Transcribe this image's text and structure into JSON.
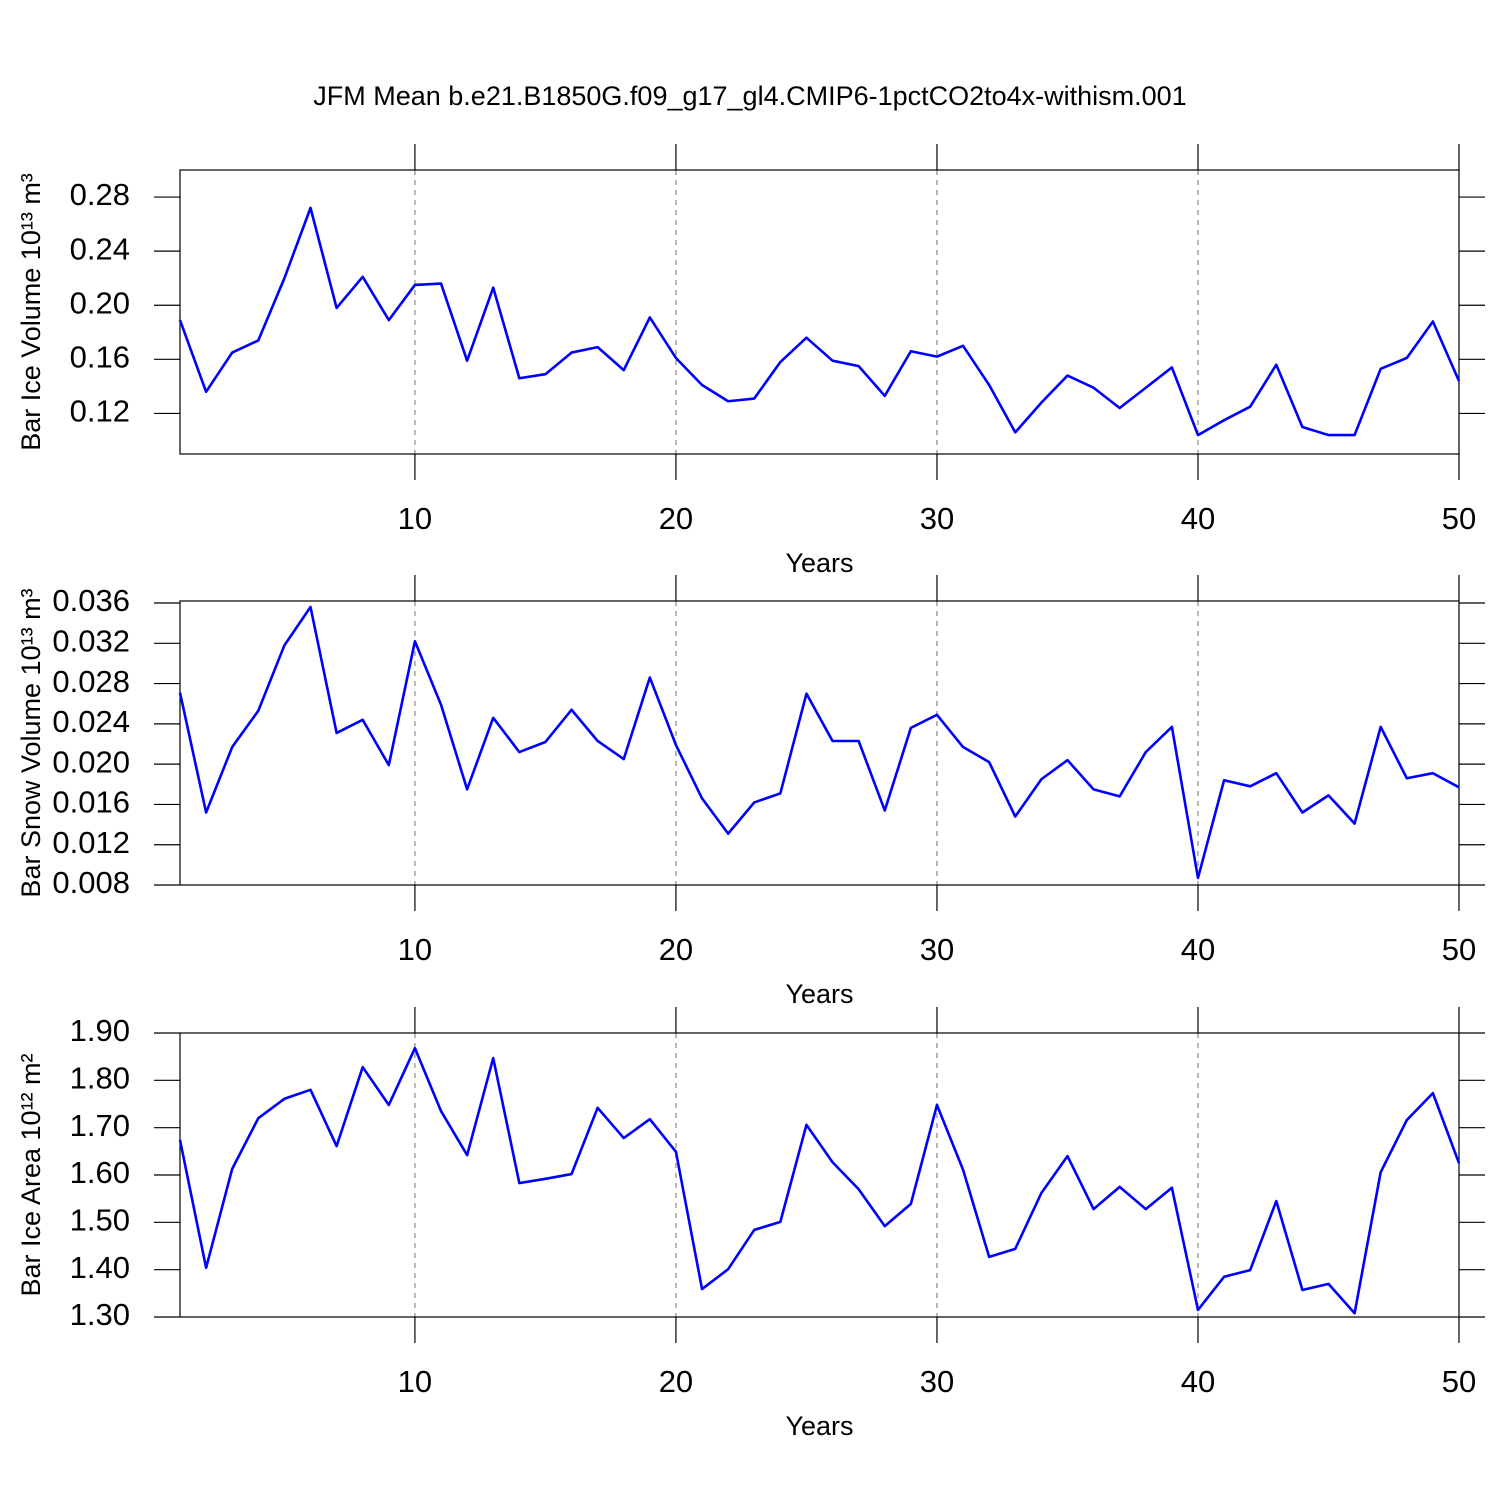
{
  "title": "JFM Mean b.e21.B1850G.f09_g17_gl4.CMIP6-1pctCO2to4x-withism.001",
  "chart_data": [
    {
      "type": "line",
      "ylabel": "Bar Ice Volume 10¹³ m³",
      "xlabel": "Years",
      "color": "#0000ff",
      "grid": "x",
      "x": [
        1,
        2,
        3,
        4,
        5,
        6,
        7,
        8,
        9,
        10,
        11,
        12,
        13,
        14,
        15,
        16,
        17,
        18,
        19,
        20,
        21,
        22,
        23,
        24,
        25,
        26,
        27,
        28,
        29,
        30,
        31,
        32,
        33,
        34,
        35,
        36,
        37,
        38,
        39,
        40,
        41,
        42,
        43,
        44,
        45,
        46,
        47,
        48,
        49,
        50
      ],
      "values": [
        0.189,
        0.136,
        0.165,
        0.174,
        0.22,
        0.272,
        0.198,
        0.221,
        0.189,
        0.215,
        0.216,
        0.159,
        0.213,
        0.146,
        0.149,
        0.165,
        0.169,
        0.152,
        0.191,
        0.161,
        0.141,
        0.129,
        0.131,
        0.158,
        0.176,
        0.159,
        0.155,
        0.133,
        0.166,
        0.162,
        0.17,
        0.141,
        0.106,
        0.128,
        0.148,
        0.139,
        0.124,
        0.139,
        0.154,
        0.104,
        0.115,
        0.125,
        0.156,
        0.11,
        0.104,
        0.104,
        0.153,
        0.161,
        0.188,
        0.144
      ],
      "xlim": [
        1,
        50
      ],
      "xticks": [
        10,
        20,
        30,
        40,
        50
      ],
      "ylim": [
        0.09,
        0.3
      ],
      "yticks": [
        0.12,
        0.16,
        {
          "value": 0.2,
          "label": "0.20"
        },
        0.24,
        0.28
      ]
    },
    {
      "type": "line",
      "ylabel": "Bar Snow Volume 10¹³ m³",
      "xlabel": "Years",
      "color": "#0000ff",
      "grid": "x",
      "x": [
        1,
        2,
        3,
        4,
        5,
        6,
        7,
        8,
        9,
        10,
        11,
        12,
        13,
        14,
        15,
        16,
        17,
        18,
        19,
        20,
        21,
        22,
        23,
        24,
        25,
        26,
        27,
        28,
        29,
        30,
        31,
        32,
        33,
        34,
        35,
        36,
        37,
        38,
        39,
        40,
        41,
        42,
        43,
        44,
        45,
        46,
        47,
        48,
        49,
        50
      ],
      "values": [
        0.0271,
        0.0152,
        0.0217,
        0.0253,
        0.0318,
        0.0356,
        0.0231,
        0.0244,
        0.0199,
        0.0322,
        0.0259,
        0.0175,
        0.0246,
        0.0212,
        0.0222,
        0.0254,
        0.0223,
        0.0205,
        0.0286,
        0.0219,
        0.0166,
        0.0131,
        0.0162,
        0.0171,
        0.027,
        0.0223,
        0.0223,
        0.0154,
        0.0236,
        0.0249,
        0.0217,
        0.0202,
        0.0148,
        0.0185,
        0.0204,
        0.0175,
        0.0168,
        0.0212,
        0.0237,
        0.0087,
        0.0184,
        0.0178,
        0.0191,
        0.0152,
        0.0169,
        0.0141,
        0.0237,
        0.0186,
        0.0191,
        0.0177
      ],
      "xlim": [
        1,
        50
      ],
      "xticks": [
        10,
        20,
        30,
        40,
        50
      ],
      "ylim": [
        0.008,
        0.0362
      ],
      "yticks": [
        0.008,
        0.012,
        0.016,
        {
          "value": 0.02,
          "label": "0.020"
        },
        0.024,
        0.028,
        0.032,
        0.036
      ]
    },
    {
      "type": "line",
      "ylabel": "Bar Ice Area 10¹² m²",
      "xlabel": "Years",
      "color": "#0000ff",
      "grid": "x",
      "x": [
        1,
        2,
        3,
        4,
        5,
        6,
        7,
        8,
        9,
        10,
        11,
        12,
        13,
        14,
        15,
        16,
        17,
        18,
        19,
        20,
        21,
        22,
        23,
        24,
        25,
        26,
        27,
        28,
        29,
        30,
        31,
        32,
        33,
        34,
        35,
        36,
        37,
        38,
        39,
        40,
        41,
        42,
        43,
        44,
        45,
        46,
        47,
        48,
        49,
        50
      ],
      "values": [
        1.674,
        1.404,
        1.613,
        1.72,
        1.761,
        1.78,
        1.661,
        1.828,
        1.748,
        1.868,
        1.735,
        1.642,
        1.847,
        1.583,
        1.592,
        1.602,
        1.742,
        1.678,
        1.718,
        1.649,
        1.359,
        1.401,
        1.484,
        1.501,
        1.706,
        1.627,
        1.57,
        1.492,
        1.539,
        1.748,
        1.611,
        1.427,
        1.444,
        1.562,
        1.64,
        1.528,
        1.575,
        1.528,
        1.573,
        1.315,
        1.385,
        1.399,
        1.545,
        1.357,
        1.37,
        1.308,
        1.606,
        1.716,
        1.773,
        1.625
      ],
      "xlim": [
        1,
        50
      ],
      "xticks": [
        10,
        20,
        30,
        40,
        50
      ],
      "ylim": [
        1.3,
        1.9
      ],
      "yticks": [
        {
          "value": 1.3,
          "label": "1.30"
        },
        {
          "value": 1.4,
          "label": "1.40"
        },
        {
          "value": 1.5,
          "label": "1.50"
        },
        {
          "value": 1.6,
          "label": "1.60"
        },
        {
          "value": 1.7,
          "label": "1.70"
        },
        {
          "value": 1.8,
          "label": "1.80"
        },
        {
          "value": 1.9,
          "label": "1.90"
        }
      ]
    }
  ]
}
